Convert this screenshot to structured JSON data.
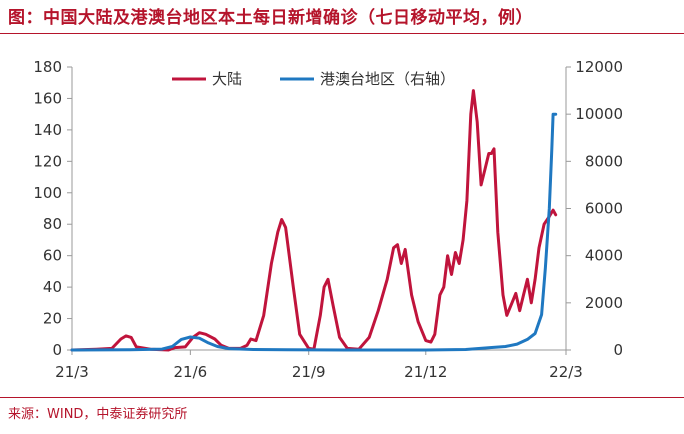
{
  "header": {
    "title": "图：中国大陆及港澳台地区本土每日新增确诊（七日移动平均，例）"
  },
  "footer": {
    "source": "来源：WIND，中泰证券研究所"
  },
  "colors": {
    "accent": "#b5142b",
    "mainland": "#c0143c",
    "hk_tw": "#1f78c1"
  },
  "chart_data": {
    "type": "line",
    "title": "中国大陆及港澳台地区本土每日新增确诊（七日移动平均，例）",
    "x_ticks": [
      "21/3",
      "21/6",
      "21/9",
      "21/12",
      "22/3"
    ],
    "x_range": [
      "2021-03-01",
      "2022-03-20"
    ],
    "y_left": {
      "range": [
        0,
        180
      ],
      "ticks": [
        0,
        20,
        40,
        60,
        80,
        100,
        120,
        140,
        160,
        180
      ]
    },
    "y_right": {
      "range": [
        0,
        12000
      ],
      "ticks": [
        0,
        2000,
        4000,
        6000,
        8000,
        10000,
        12000
      ]
    },
    "grid": false,
    "legend_position": "top-center",
    "series": [
      {
        "name": "大陆",
        "axis": "left",
        "color": "#c0143c",
        "points": [
          [
            "2021-03-01",
            0
          ],
          [
            "2021-03-20",
            0.5
          ],
          [
            "2021-04-01",
            1
          ],
          [
            "2021-04-08",
            7
          ],
          [
            "2021-04-12",
            9
          ],
          [
            "2021-04-16",
            8
          ],
          [
            "2021-04-20",
            2
          ],
          [
            "2021-05-01",
            0.5
          ],
          [
            "2021-05-15",
            0
          ],
          [
            "2021-05-20",
            1.5
          ],
          [
            "2021-05-28",
            2
          ],
          [
            "2021-06-03",
            8
          ],
          [
            "2021-06-08",
            11
          ],
          [
            "2021-06-13",
            10
          ],
          [
            "2021-06-20",
            7
          ],
          [
            "2021-06-25",
            3
          ],
          [
            "2021-07-01",
            1
          ],
          [
            "2021-07-10",
            1
          ],
          [
            "2021-07-15",
            3
          ],
          [
            "2021-07-18",
            7
          ],
          [
            "2021-07-22",
            6
          ],
          [
            "2021-07-28",
            22
          ],
          [
            "2021-08-03",
            55
          ],
          [
            "2021-08-08",
            75
          ],
          [
            "2021-08-11",
            83
          ],
          [
            "2021-08-14",
            78
          ],
          [
            "2021-08-20",
            40
          ],
          [
            "2021-08-25",
            10
          ],
          [
            "2021-09-01",
            1
          ],
          [
            "2021-09-05",
            0.5
          ],
          [
            "2021-09-10",
            22
          ],
          [
            "2021-09-13",
            40
          ],
          [
            "2021-09-16",
            45
          ],
          [
            "2021-09-20",
            28
          ],
          [
            "2021-09-25",
            8
          ],
          [
            "2021-10-01",
            1
          ],
          [
            "2021-10-10",
            0.5
          ],
          [
            "2021-10-18",
            8
          ],
          [
            "2021-10-25",
            25
          ],
          [
            "2021-11-01",
            45
          ],
          [
            "2021-11-06",
            65
          ],
          [
            "2021-11-09",
            67
          ],
          [
            "2021-11-12",
            55
          ],
          [
            "2021-11-15",
            64
          ],
          [
            "2021-11-20",
            35
          ],
          [
            "2021-11-25",
            18
          ],
          [
            "2021-12-01",
            6
          ],
          [
            "2021-12-05",
            5
          ],
          [
            "2021-12-08",
            10
          ],
          [
            "2021-12-12",
            35
          ],
          [
            "2021-12-15",
            40
          ],
          [
            "2021-12-18",
            60
          ],
          [
            "2021-12-21",
            48
          ],
          [
            "2021-12-24",
            62
          ],
          [
            "2021-12-27",
            55
          ],
          [
            "2021-12-30",
            70
          ],
          [
            "2022-01-02",
            95
          ],
          [
            "2022-01-05",
            150
          ],
          [
            "2022-01-07",
            165
          ],
          [
            "2022-01-10",
            145
          ],
          [
            "2022-01-13",
            105
          ],
          [
            "2022-01-16",
            115
          ],
          [
            "2022-01-19",
            125
          ],
          [
            "2022-01-21",
            125
          ],
          [
            "2022-01-23",
            128
          ],
          [
            "2022-01-26",
            75
          ],
          [
            "2022-01-30",
            35
          ],
          [
            "2022-02-02",
            22
          ],
          [
            "2022-02-06",
            30
          ],
          [
            "2022-02-09",
            36
          ],
          [
            "2022-02-12",
            25
          ],
          [
            "2022-02-15",
            35
          ],
          [
            "2022-02-18",
            45
          ],
          [
            "2022-02-21",
            30
          ],
          [
            "2022-02-24",
            45
          ],
          [
            "2022-02-27",
            65
          ],
          [
            "2022-03-03",
            80
          ],
          [
            "2022-03-07",
            85
          ],
          [
            "2022-03-10",
            89
          ],
          [
            "2022-03-12",
            86
          ]
        ]
      },
      {
        "name": "港澳台地区（右轴）",
        "axis": "right",
        "color": "#1f78c1",
        "points": [
          [
            "2021-03-01",
            0
          ],
          [
            "2021-04-15",
            10
          ],
          [
            "2021-05-10",
            40
          ],
          [
            "2021-05-18",
            150
          ],
          [
            "2021-05-25",
            450
          ],
          [
            "2021-06-01",
            550
          ],
          [
            "2021-06-08",
            500
          ],
          [
            "2021-06-15",
            300
          ],
          [
            "2021-06-22",
            150
          ],
          [
            "2021-07-01",
            60
          ],
          [
            "2021-07-20",
            20
          ],
          [
            "2021-08-15",
            10
          ],
          [
            "2021-10-01",
            0
          ],
          [
            "2021-12-01",
            0
          ],
          [
            "2022-01-01",
            20
          ],
          [
            "2022-01-20",
            100
          ],
          [
            "2022-02-01",
            150
          ],
          [
            "2022-02-10",
            250
          ],
          [
            "2022-02-18",
            450
          ],
          [
            "2022-02-24",
            700
          ],
          [
            "2022-03-01",
            1500
          ],
          [
            "2022-03-04",
            3500
          ],
          [
            "2022-03-07",
            6000
          ],
          [
            "2022-03-09",
            8500
          ],
          [
            "2022-03-10",
            10000
          ],
          [
            "2022-03-12",
            10000
          ]
        ]
      }
    ]
  }
}
